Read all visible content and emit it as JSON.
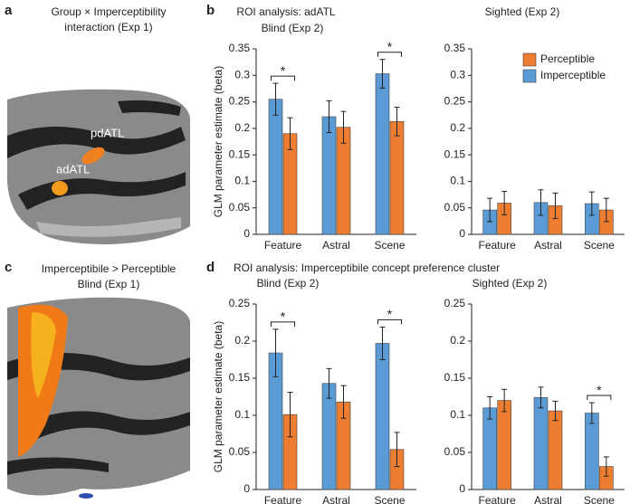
{
  "images": [
    {
      "panel": "a",
      "caption": [
        "Group × Imperceptibility",
        "interaction (Exp 1)"
      ],
      "labels": [
        "pdATL",
        "adATL"
      ]
    },
    {
      "panel": "c",
      "caption": [
        "Imperceptibile > Perceptible",
        "Blind (Exp 1)"
      ]
    }
  ],
  "chart_data": [
    {
      "type": "bar",
      "panel": "b",
      "title": "ROI analysis: adATL",
      "subtitle": "Blind (Exp 2)",
      "ylabel": "GLM parameter estimate (beta)",
      "categories": [
        "Feature",
        "Astral",
        "Scene"
      ],
      "series": [
        {
          "name": "Imperceptible",
          "color": "#5b9bd5",
          "values": [
            0.255,
            0.222,
            0.303
          ],
          "errors": [
            0.03,
            0.03,
            0.027
          ]
        },
        {
          "name": "Perceptible",
          "color": "#ed7d31",
          "values": [
            0.19,
            0.202,
            0.213
          ],
          "errors": [
            0.03,
            0.03,
            0.027
          ]
        }
      ],
      "ylim": [
        0,
        0.35
      ],
      "yticks": [
        0,
        0.05,
        0.1,
        0.15,
        0.2,
        0.25,
        0.3,
        0.35
      ],
      "annotations": [
        {
          "text": "*",
          "category": "Feature"
        },
        {
          "text": "*",
          "category": "Scene"
        }
      ]
    },
    {
      "type": "bar",
      "subtitle": "Sighted (Exp 2)",
      "categories": [
        "Feature",
        "Astral",
        "Scene"
      ],
      "series": [
        {
          "name": "Imperceptible",
          "color": "#5b9bd5",
          "values": [
            0.046,
            0.06,
            0.058
          ],
          "errors": [
            0.022,
            0.024,
            0.022
          ]
        },
        {
          "name": "Perceptible",
          "color": "#ed7d31",
          "values": [
            0.059,
            0.054,
            0.046
          ],
          "errors": [
            0.022,
            0.024,
            0.022
          ]
        }
      ],
      "ylim": [
        0,
        0.35
      ],
      "yticks": [
        0,
        0.05,
        0.1,
        0.15,
        0.2,
        0.25,
        0.3,
        0.35
      ],
      "legend": "upper right"
    },
    {
      "type": "bar",
      "panel": "d",
      "title": "ROI analysis: Imperceptibile concept preference cluster",
      "subtitle": "Blind (Exp 2)",
      "ylabel": "GLM parameter estimate (beta)",
      "categories": [
        "Feature",
        "Astral",
        "Scene"
      ],
      "series": [
        {
          "name": "Imperceptible",
          "color": "#5b9bd5",
          "values": [
            0.184,
            0.143,
            0.197
          ],
          "errors": [
            0.032,
            0.02,
            0.022
          ]
        },
        {
          "name": "Perceptible",
          "color": "#ed7d31",
          "values": [
            0.101,
            0.118,
            0.054
          ],
          "errors": [
            0.03,
            0.022,
            0.023
          ]
        }
      ],
      "ylim": [
        0,
        0.25
      ],
      "yticks": [
        0,
        0.05,
        0.1,
        0.15,
        0.2,
        0.25
      ],
      "annotations": [
        {
          "text": "*",
          "category": "Feature"
        },
        {
          "text": "*",
          "category": "Scene"
        }
      ]
    },
    {
      "type": "bar",
      "subtitle": "Sighted (Exp 2)",
      "categories": [
        "Feature",
        "Astral",
        "Scene"
      ],
      "series": [
        {
          "name": "Imperceptible",
          "color": "#5b9bd5",
          "values": [
            0.11,
            0.124,
            0.103
          ],
          "errors": [
            0.015,
            0.014,
            0.014
          ]
        },
        {
          "name": "Perceptible",
          "color": "#ed7d31",
          "values": [
            0.12,
            0.106,
            0.031
          ],
          "errors": [
            0.015,
            0.013,
            0.013
          ]
        }
      ],
      "ylim": [
        0,
        0.25
      ],
      "yticks": [
        0,
        0.05,
        0.1,
        0.15,
        0.2,
        0.25
      ],
      "annotations": [
        {
          "text": "*",
          "category": "Scene"
        }
      ]
    }
  ]
}
